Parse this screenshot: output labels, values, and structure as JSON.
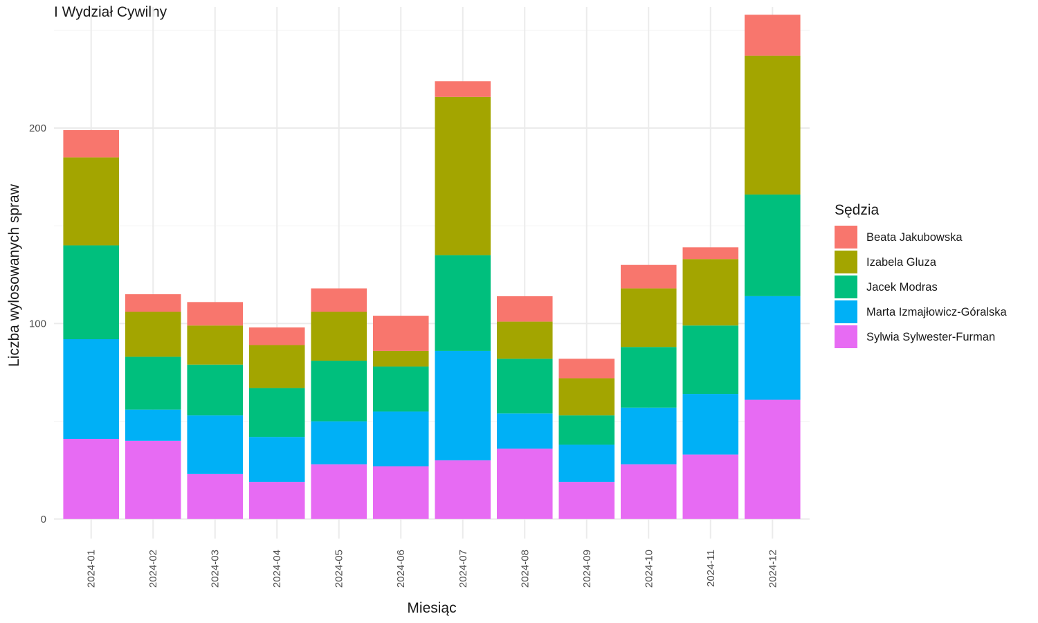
{
  "chart_data": {
    "type": "bar",
    "stacked": true,
    "title": "I Wydział Cywilny",
    "xlabel": "Miesiąc",
    "ylabel": "Liczba wylosowanych spraw",
    "ylim": [
      -10,
      262
    ],
    "yticks": [
      0,
      100,
      200
    ],
    "grid": true,
    "legend": {
      "title": "Sędzia",
      "position": "right"
    },
    "categories": [
      "2024-01",
      "2024-02",
      "2024-03",
      "2024-04",
      "2024-05",
      "2024-06",
      "2024-07",
      "2024-08",
      "2024-09",
      "2024-10",
      "2024-11",
      "2024-12"
    ],
    "series": [
      {
        "name": "Sylwia Sylwester-Furman",
        "color": "#E76BF3",
        "values": [
          41,
          40,
          23,
          19,
          28,
          27,
          30,
          36,
          19,
          28,
          33,
          61
        ]
      },
      {
        "name": "Marta Izmajłowicz-Góralska",
        "color": "#00B0F6",
        "values": [
          51,
          16,
          30,
          23,
          22,
          28,
          56,
          18,
          19,
          29,
          31,
          53
        ]
      },
      {
        "name": "Jacek Modras",
        "color": "#00BF7D",
        "values": [
          48,
          27,
          26,
          25,
          31,
          23,
          49,
          28,
          15,
          31,
          35,
          52
        ]
      },
      {
        "name": "Izabela Gluza",
        "color": "#A3A500",
        "values": [
          45,
          23,
          20,
          22,
          25,
          8,
          81,
          19,
          19,
          30,
          34,
          71
        ]
      },
      {
        "name": "Beata Jakubowska",
        "color": "#F8766D",
        "values": [
          14,
          9,
          12,
          9,
          12,
          18,
          8,
          13,
          10,
          12,
          6,
          21
        ]
      }
    ],
    "legend_order": [
      "Beata Jakubowska",
      "Izabela Gluza",
      "Jacek Modras",
      "Marta Izmajłowicz-Góralska",
      "Sylwia Sylwester-Furman"
    ]
  }
}
